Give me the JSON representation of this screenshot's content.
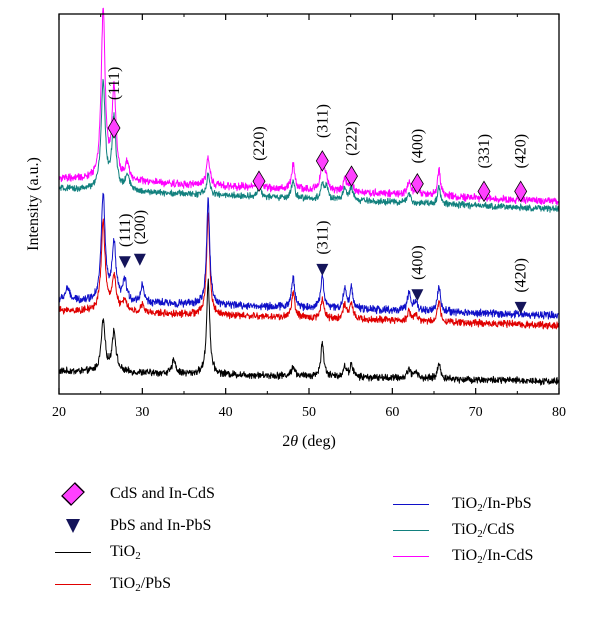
{
  "chart_data": {
    "type": "line",
    "xlabel_parts": [
      "2",
      "θ",
      " (deg)"
    ],
    "ylabel": "Intensity (a.u.)",
    "xlim": [
      20,
      80
    ],
    "xticks": [
      20,
      30,
      40,
      50,
      60,
      70,
      80
    ],
    "xtick_labels": [
      "20",
      "30",
      "40",
      "50",
      "60",
      "70",
      "80"
    ],
    "grid": false,
    "y_unit": "a.u. (stacked, arbitrary offsets)",
    "series": [
      {
        "id": "tio2",
        "color": "#000000",
        "offset": 5,
        "peaks": [
          [
            25.3,
            20
          ],
          [
            26.6,
            16
          ],
          [
            33.8,
            6
          ],
          [
            37.9,
            37
          ],
          [
            48.1,
            4
          ],
          [
            51.6,
            13
          ],
          [
            54.3,
            4
          ],
          [
            55.1,
            5
          ],
          [
            62.0,
            4
          ],
          [
            62.8,
            3
          ],
          [
            65.6,
            6
          ]
        ],
        "noise": 1.1,
        "bg_start": 4,
        "bg_end": 0
      },
      {
        "id": "tio2-pbs",
        "color": "#e00000",
        "offset": 27,
        "peaks": [
          [
            25.3,
            35
          ],
          [
            26.6,
            14
          ],
          [
            27.9,
            5
          ],
          [
            30.0,
            3
          ],
          [
            37.9,
            40
          ],
          [
            48.1,
            10
          ],
          [
            51.6,
            8
          ],
          [
            54.3,
            6
          ],
          [
            55.1,
            6
          ],
          [
            62.0,
            4
          ],
          [
            62.8,
            3
          ],
          [
            65.6,
            8
          ]
        ],
        "noise": 1.1,
        "bg_start": 6,
        "bg_end": 0
      },
      {
        "id": "tio2-in-pbs",
        "color": "#1010c8",
        "offset": 31,
        "peaks": [
          [
            21.0,
            5
          ],
          [
            25.3,
            42
          ],
          [
            26.6,
            22
          ],
          [
            27.9,
            8
          ],
          [
            30.0,
            7
          ],
          [
            37.9,
            42
          ],
          [
            48.1,
            12
          ],
          [
            51.6,
            13
          ],
          [
            54.3,
            8
          ],
          [
            55.1,
            8
          ],
          [
            62.0,
            7
          ],
          [
            62.8,
            4
          ],
          [
            65.6,
            10
          ]
        ],
        "noise": 1.2,
        "bg_start": 6,
        "bg_end": 0
      },
      {
        "id": "tio2-cds",
        "color": "#12807e",
        "offset": 73,
        "peaks": [
          [
            25.3,
            43
          ],
          [
            26.6,
            28
          ],
          [
            28.2,
            6
          ],
          [
            37.9,
            8
          ],
          [
            44.0,
            5
          ],
          [
            48.1,
            7
          ],
          [
            51.6,
            6
          ],
          [
            52.1,
            5
          ],
          [
            54.3,
            5
          ],
          [
            55.1,
            5
          ],
          [
            62.0,
            4
          ],
          [
            65.6,
            7
          ]
        ],
        "noise": 1.0,
        "bg_start": 8,
        "bg_end": 0
      },
      {
        "id": "tio2-in-cds",
        "color": "#ff00ff",
        "offset": 76,
        "peaks": [
          [
            25.3,
            67
          ],
          [
            26.6,
            36
          ],
          [
            28.2,
            7
          ],
          [
            37.9,
            12
          ],
          [
            44.0,
            6
          ],
          [
            48.1,
            10
          ],
          [
            51.6,
            13
          ],
          [
            52.1,
            5
          ],
          [
            54.3,
            5
          ],
          [
            55.1,
            5
          ],
          [
            62.0,
            5
          ],
          [
            63.0,
            4
          ],
          [
            65.6,
            10
          ]
        ],
        "noise": 1.2,
        "bg_start": 9,
        "bg_end": 0
      }
    ],
    "cds_peaks": [
      {
        "label": "(111)",
        "x": 26.6,
        "marker_y": 105,
        "label_y": 116
      },
      {
        "label": "(220)",
        "x": 44.0,
        "marker_y": 84,
        "label_y": 92
      },
      {
        "label": "(311)",
        "x": 51.6,
        "marker_y": 92,
        "label_y": 101
      },
      {
        "label": "(222)",
        "x": 55.1,
        "marker_y": 86,
        "label_y": 94
      },
      {
        "label": "(400)",
        "x": 63.0,
        "marker_y": 83,
        "label_y": 91
      },
      {
        "label": "(331)",
        "x": 71.0,
        "marker_y": 80,
        "label_y": 89
      },
      {
        "label": "(420)",
        "x": 75.4,
        "marker_y": 80,
        "label_y": 89
      }
    ],
    "pbs_peaks": [
      {
        "label": "(111)",
        "x": 27.9,
        "marker_y": 52,
        "label_y": 58
      },
      {
        "label": "(200)",
        "x": 29.7,
        "marker_y": 53,
        "label_y": 59
      },
      {
        "label": "(311)",
        "x": 51.6,
        "marker_y": 49,
        "label_y": 55
      },
      {
        "label": "(400)",
        "x": 63.0,
        "marker_y": 39,
        "label_y": 45
      },
      {
        "label": "(420)",
        "x": 75.4,
        "marker_y": 34,
        "label_y": 40
      }
    ]
  },
  "legend": {
    "cds_marker_label": "CdS and In-CdS",
    "pbs_marker_label": "PbS and In-PbS",
    "tio2": {
      "base": "TiO",
      "sub": "2",
      "rest": "",
      "color": "#000000"
    },
    "tio2_pbs": {
      "base": "TiO",
      "sub": "2",
      "rest": "/PbS",
      "color": "#e00000"
    },
    "tio2_in_pbs": {
      "base": "TiO",
      "sub": "2",
      "rest": "/In-PbS",
      "color": "#1010c8"
    },
    "tio2_cds": {
      "base": "TiO",
      "sub": "2",
      "rest": "/CdS",
      "color": "#12807e"
    },
    "tio2_in_cds": {
      "base": "TiO",
      "sub": "2",
      "rest": "/In-CdS",
      "color": "#ff00ff"
    },
    "cds_marker_color": "#ff40ff",
    "pbs_marker_color": "#14145a"
  }
}
